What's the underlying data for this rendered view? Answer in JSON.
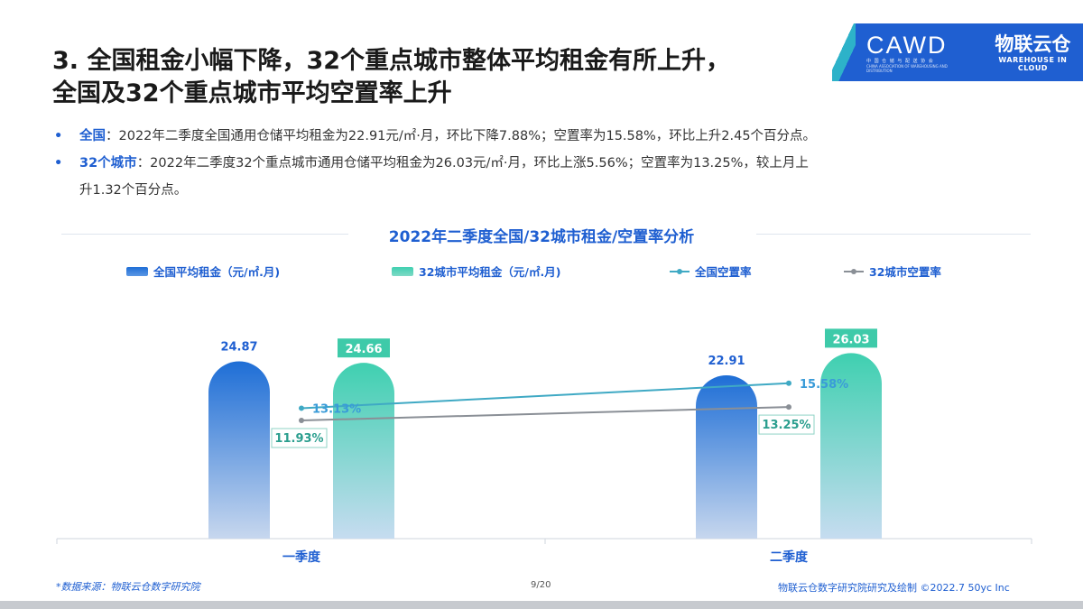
{
  "header": {
    "title_line1": "3. 全国租金小幅下降，32个重点城市整体平均租金有所上升，",
    "title_line2": "全国及32个重点城市平均空置率上升"
  },
  "logos": {
    "cawd": "CAWD",
    "cawd_cn": "中 国 仓 储 与 配 送 协 会",
    "cawd_en": "CHINA ASSOCIATION OF WAREHOUSING AND DISTRIBUTION",
    "wc_cn": "物联云仓",
    "wc_en": "WAREHOUSE IN CLOUD"
  },
  "bullets": [
    {
      "dot": "•",
      "label": "全国",
      "text": "：2022年二季度全国通用仓储平均租金为22.91元/㎡·月，环比下降7.88%；空置率为15.58%，环比上升2.45个百分点。"
    },
    {
      "dot": "•",
      "label": "32个城市",
      "text": "：2022年二季度32个重点城市通用仓储平均租金为26.03元/㎡·月，环比上涨5.56%；空置率为13.25%，较上月上"
    },
    {
      "dot": "",
      "label": "",
      "text": "升1.32个百分点。"
    }
  ],
  "chart_data": {
    "type": "bar",
    "title": "2022年二季度全国/32城市租金/空置率分析",
    "categories": [
      "一季度",
      "二季度"
    ],
    "series": [
      {
        "name": "全国平均租金（元/㎡.月)",
        "kind": "bar",
        "values": [
          24.87,
          22.91
        ],
        "labels": [
          "24.87",
          "22.91"
        ],
        "color_top": "#1e6ed6",
        "color_bottom": "#c7d7ee"
      },
      {
        "name": "32城市平均租金（元/㎡.月)",
        "kind": "bar",
        "values": [
          24.66,
          26.03
        ],
        "labels": [
          "24.66",
          "26.03"
        ],
        "color_top": "#3fd0b0",
        "color_bottom": "#c6dcf0"
      },
      {
        "name": "全国空置率",
        "kind": "line",
        "values": [
          13.13,
          15.58
        ],
        "labels": [
          "13.13%",
          "15.58%"
        ],
        "color": "#3fa9c4"
      },
      {
        "name": "32城市空置率",
        "kind": "line",
        "values": [
          11.93,
          13.25
        ],
        "labels": [
          "11.93%",
          "13.25%"
        ],
        "color": "#8a8f96"
      }
    ],
    "legend": "top",
    "grid": false
  },
  "footer": {
    "source": "*数据来源：物联云仓数字研究院",
    "page": "9/20",
    "credit": "物联云仓数字研究院研究及绘制    ©2022.7  50yc Inc"
  }
}
